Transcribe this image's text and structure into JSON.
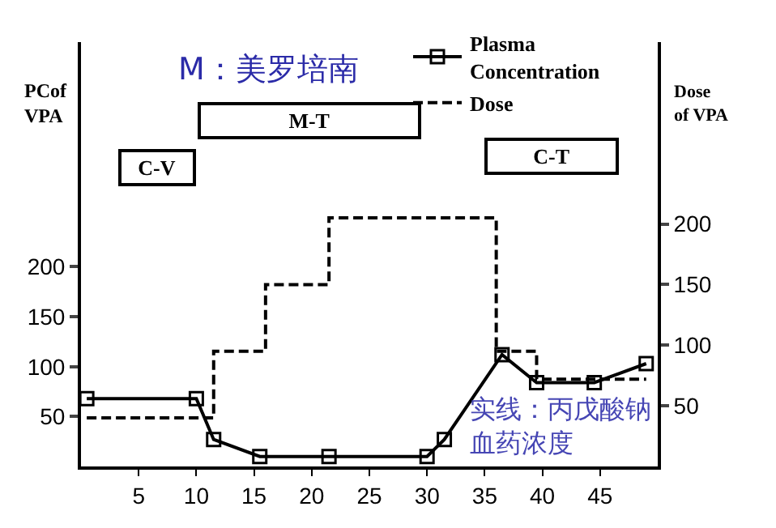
{
  "chart_data": {
    "type": "line",
    "ylabel": "PCof VPA",
    "y2label": "Dose of VPA",
    "annotations": [
      "M：美罗培南",
      "M-T",
      "C-V",
      "C-T",
      "实线：丙戊酸钠血药浓度"
    ],
    "series": [
      {
        "name": "Plasma Concentration",
        "color": "#000000",
        "marker": "square",
        "line_style": "solid",
        "x": [
          0.5,
          10,
          11.5,
          15.5,
          21.5,
          30,
          31.5,
          36.5,
          39.5,
          44.5,
          49
        ],
        "values": [
          68,
          68,
          27,
          10,
          10,
          10,
          27,
          112,
          84,
          84,
          103
        ]
      },
      {
        "name": "Dose",
        "type": "step",
        "axis": "y2",
        "color": "#000000",
        "marker": "none",
        "line_style": "dashed",
        "x": [
          0.5,
          11.5,
          16,
          21.5,
          36,
          39.5,
          49
        ],
        "values": [
          40,
          95,
          150,
          205,
          95,
          72,
          72
        ]
      }
    ],
    "xlim": [
      0,
      50
    ],
    "xticks": [
      5,
      10,
      15,
      20,
      25,
      30,
      35,
      40,
      45
    ],
    "ylim": [
      0,
      425
    ],
    "yticks": [
      50,
      100,
      150,
      200
    ],
    "y2lim": [
      0,
      350
    ],
    "y2ticks": [
      50,
      100,
      150,
      200
    ],
    "legend": "top right"
  }
}
